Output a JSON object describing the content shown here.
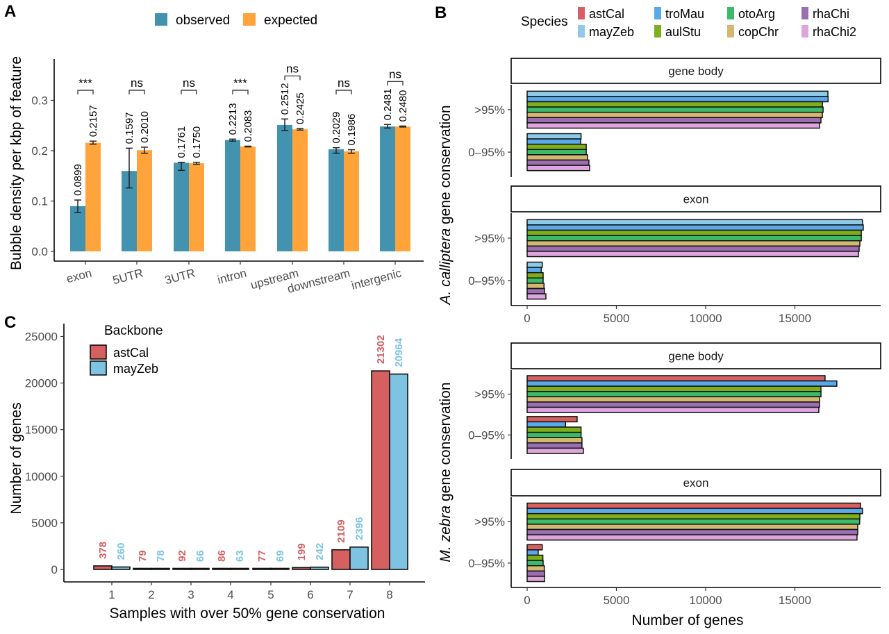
{
  "chart_data": [
    {
      "panel": "A",
      "type": "bar",
      "title": "",
      "xlabel": "",
      "ylabel": "Bubble density per kbp of feature",
      "ylim": [
        0,
        0.35
      ],
      "yticks": [
        "0.0",
        "0.1",
        "0.2",
        "0.3"
      ],
      "ytick_values": [
        0,
        0.1,
        0.2,
        0.3
      ],
      "grid": false,
      "legend_position": "top",
      "categories": [
        "exon",
        "5UTR",
        "3UTR",
        "intron",
        "upstream",
        "downstream",
        "intergenic"
      ],
      "series": [
        {
          "name": "observed",
          "color": "#4393b0",
          "values": [
            0.0899,
            0.1597,
            0.1761,
            0.2213,
            0.2512,
            0.2029,
            0.2481
          ],
          "value_labels": [
            "0.0899",
            "0.1597",
            "0.1761",
            "0.2213",
            "0.2512",
            "0.2029",
            "0.2481"
          ],
          "error_low": [
            0.077,
            0.126,
            0.161,
            0.219,
            0.24,
            0.195,
            0.245
          ],
          "error_high": [
            0.102,
            0.205,
            0.177,
            0.223,
            0.263,
            0.206,
            0.252
          ]
        },
        {
          "name": "expected",
          "color": "#ffa43b",
          "values": [
            0.2157,
            0.201,
            0.175,
            0.2083,
            0.2425,
            0.1986,
            0.248
          ],
          "value_labels": [
            "0.2157",
            "0.2010",
            "0.1750",
            "0.2083",
            "0.2425",
            "0.1986",
            "0.2480"
          ],
          "error_low": [
            0.213,
            0.195,
            0.173,
            0.2075,
            0.241,
            0.195,
            0.247
          ],
          "error_high": [
            0.219,
            0.207,
            0.177,
            0.209,
            0.244,
            0.202,
            0.249
          ]
        }
      ],
      "significance": [
        "***",
        "ns",
        "ns",
        "***",
        "ns",
        "ns",
        "ns"
      ]
    },
    {
      "panel": "C",
      "type": "bar",
      "title": "",
      "xlabel": "Samples with over 50% gene conservation",
      "ylabel": "Number of genes",
      "ylim": [
        0,
        26000
      ],
      "yticks": [
        "0",
        "5000",
        "10000",
        "15000",
        "20000",
        "25000"
      ],
      "ytick_values": [
        0,
        5000,
        10000,
        15000,
        20000,
        25000
      ],
      "grid": false,
      "legend_title": "Backbone",
      "legend_position": "top-left",
      "categories": [
        "1",
        "2",
        "3",
        "4",
        "5",
        "6",
        "7",
        "8"
      ],
      "series": [
        {
          "name": "astCal",
          "color": "#d65f5f",
          "values": [
            378,
            79,
            92,
            86,
            77,
            199,
            2109,
            21302
          ]
        },
        {
          "name": "mayZeb",
          "color": "#7ec4e2",
          "values": [
            260,
            78,
            66,
            63,
            69,
            242,
            2396,
            20964
          ]
        }
      ]
    },
    {
      "panel": "B",
      "type": "bar",
      "orientation": "horizontal",
      "title": "",
      "xlabel": "Number of genes",
      "xlim": [
        0,
        20000
      ],
      "xticks": [
        "0",
        "5000",
        "10000",
        "15000"
      ],
      "xtick_values": [
        0,
        5000,
        10000,
        15000
      ],
      "grid": false,
      "legend_title": "Species",
      "legend_position": "top",
      "species": [
        {
          "name": "astCal",
          "color": "#d65f5f"
        },
        {
          "name": "mayZeb",
          "color": "#8ecae6"
        },
        {
          "name": "troMau",
          "color": "#5aa9ea"
        },
        {
          "name": "aulStu",
          "color": "#7fae1b"
        },
        {
          "name": "otoArg",
          "color": "#3cba6a"
        },
        {
          "name": "copChr",
          "color": "#d4b872"
        },
        {
          "name": "rhaChi",
          "color": "#9a6fb0"
        },
        {
          "name": "rhaChi2",
          "color": "#dca5dc"
        }
      ],
      "legend_order": [
        "astCal",
        "mayZeb",
        "troMau",
        "aulStu",
        "otoArg",
        "copChr",
        "rhaChi",
        "rhaChi2"
      ],
      "row_groups": [
        {
          "ylabel_prefix": "A. calliptera",
          "ylabel_suffix": " gene conservation",
          "facets": [
            {
              "strip": "gene body",
              "categories": [
                ">95%",
                "0–95%"
              ],
              "bars": {
                ">95%": {
                  "mayZeb": 16850,
                  "troMau": 16860,
                  "aulStu": 16540,
                  "otoArg": 16580,
                  "copChr": 16540,
                  "rhaChi": 16460,
                  "rhaChi2": 16380
                },
                "0–95%": {
                  "mayZeb": 3020,
                  "troMau": 3000,
                  "aulStu": 3310,
                  "otoArg": 3310,
                  "copChr": 3380,
                  "rhaChi": 3460,
                  "rhaChi2": 3500
                }
              }
            },
            {
              "strip": "exon",
              "categories": [
                ">95%",
                "0–95%"
              ],
              "bars": {
                ">95%": {
                  "mayZeb": 18790,
                  "troMau": 18830,
                  "aulStu": 18720,
                  "otoArg": 18720,
                  "copChr": 18640,
                  "rhaChi": 18600,
                  "rhaChi2": 18560
                },
                "0–95%": {
                  "mayZeb": 845,
                  "troMau": 790,
                  "aulStu": 895,
                  "otoArg": 895,
                  "copChr": 945,
                  "rhaChi": 975,
                  "rhaChi2": 1050
                }
              }
            }
          ]
        },
        {
          "ylabel_prefix": "M. zebra",
          "ylabel_suffix": " gene conservation",
          "facets": [
            {
              "strip": "gene body",
              "categories": [
                ">95%",
                "0–95%"
              ],
              "bars": {
                ">95%": {
                  "astCal": 16690,
                  "troMau": 17350,
                  "aulStu": 16460,
                  "otoArg": 16460,
                  "copChr": 16380,
                  "rhaChi": 16380,
                  "rhaChi2": 16340
                },
                "0–95%": {
                  "astCal": 2800,
                  "troMau": 2150,
                  "aulStu": 3020,
                  "otoArg": 3020,
                  "copChr": 3070,
                  "rhaChi": 3070,
                  "rhaChi2": 3150
                }
              }
            },
            {
              "strip": "exon",
              "categories": [
                ">95%",
                "0–95%"
              ],
              "bars": {
                ">95%": {
                  "astCal": 18680,
                  "troMau": 18790,
                  "aulStu": 18640,
                  "otoArg": 18630,
                  "copChr": 18520,
                  "rhaChi": 18520,
                  "rhaChi2": 18480
                },
                "0–95%": {
                  "astCal": 845,
                  "troMau": 620,
                  "aulStu": 880,
                  "otoArg": 895,
                  "copChr": 960,
                  "rhaChi": 975,
                  "rhaChi2": 975
                }
              }
            }
          ]
        }
      ]
    }
  ],
  "labels": {
    "panel_a": "A",
    "panel_b": "B",
    "panel_c": "C"
  }
}
